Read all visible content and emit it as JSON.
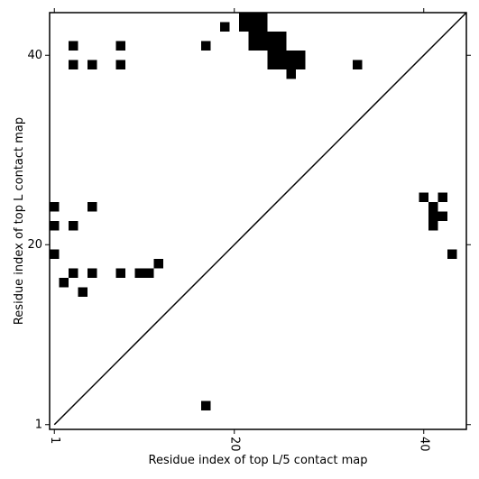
{
  "chart_data": {
    "type": "scatter",
    "marker": "square",
    "color": "#000000",
    "xlabel": "Residue index of top L/5 contact map",
    "ylabel": "Residue index of top L contact map",
    "x": [
      17,
      1,
      1,
      3,
      5,
      1,
      3,
      5,
      8,
      10,
      11,
      12,
      2,
      4,
      3,
      3,
      5,
      8,
      8,
      17,
      19,
      21,
      22,
      23,
      21,
      22,
      23,
      22,
      23,
      24,
      25,
      22,
      23,
      24,
      25,
      24,
      25,
      26,
      27,
      24,
      25,
      26,
      27,
      26,
      33,
      40,
      42,
      41,
      41,
      42,
      41,
      43
    ],
    "values": [
      3,
      24,
      22,
      22,
      24,
      19,
      17,
      17,
      17,
      17,
      17,
      18,
      16,
      15,
      41,
      39,
      39,
      41,
      39,
      41,
      43,
      44,
      44,
      44,
      43,
      43,
      43,
      42,
      42,
      42,
      42,
      41,
      41,
      41,
      41,
      40,
      40,
      40,
      40,
      39,
      39,
      39,
      39,
      38,
      39,
      25,
      25,
      24,
      23,
      23,
      22,
      19
    ],
    "xlim": [
      0.5,
      44.5
    ],
    "ylim": [
      0.5,
      44.5
    ],
    "xticks": [
      1,
      20,
      40
    ],
    "yticks": [
      1,
      20,
      40
    ],
    "diagonal": true
  }
}
